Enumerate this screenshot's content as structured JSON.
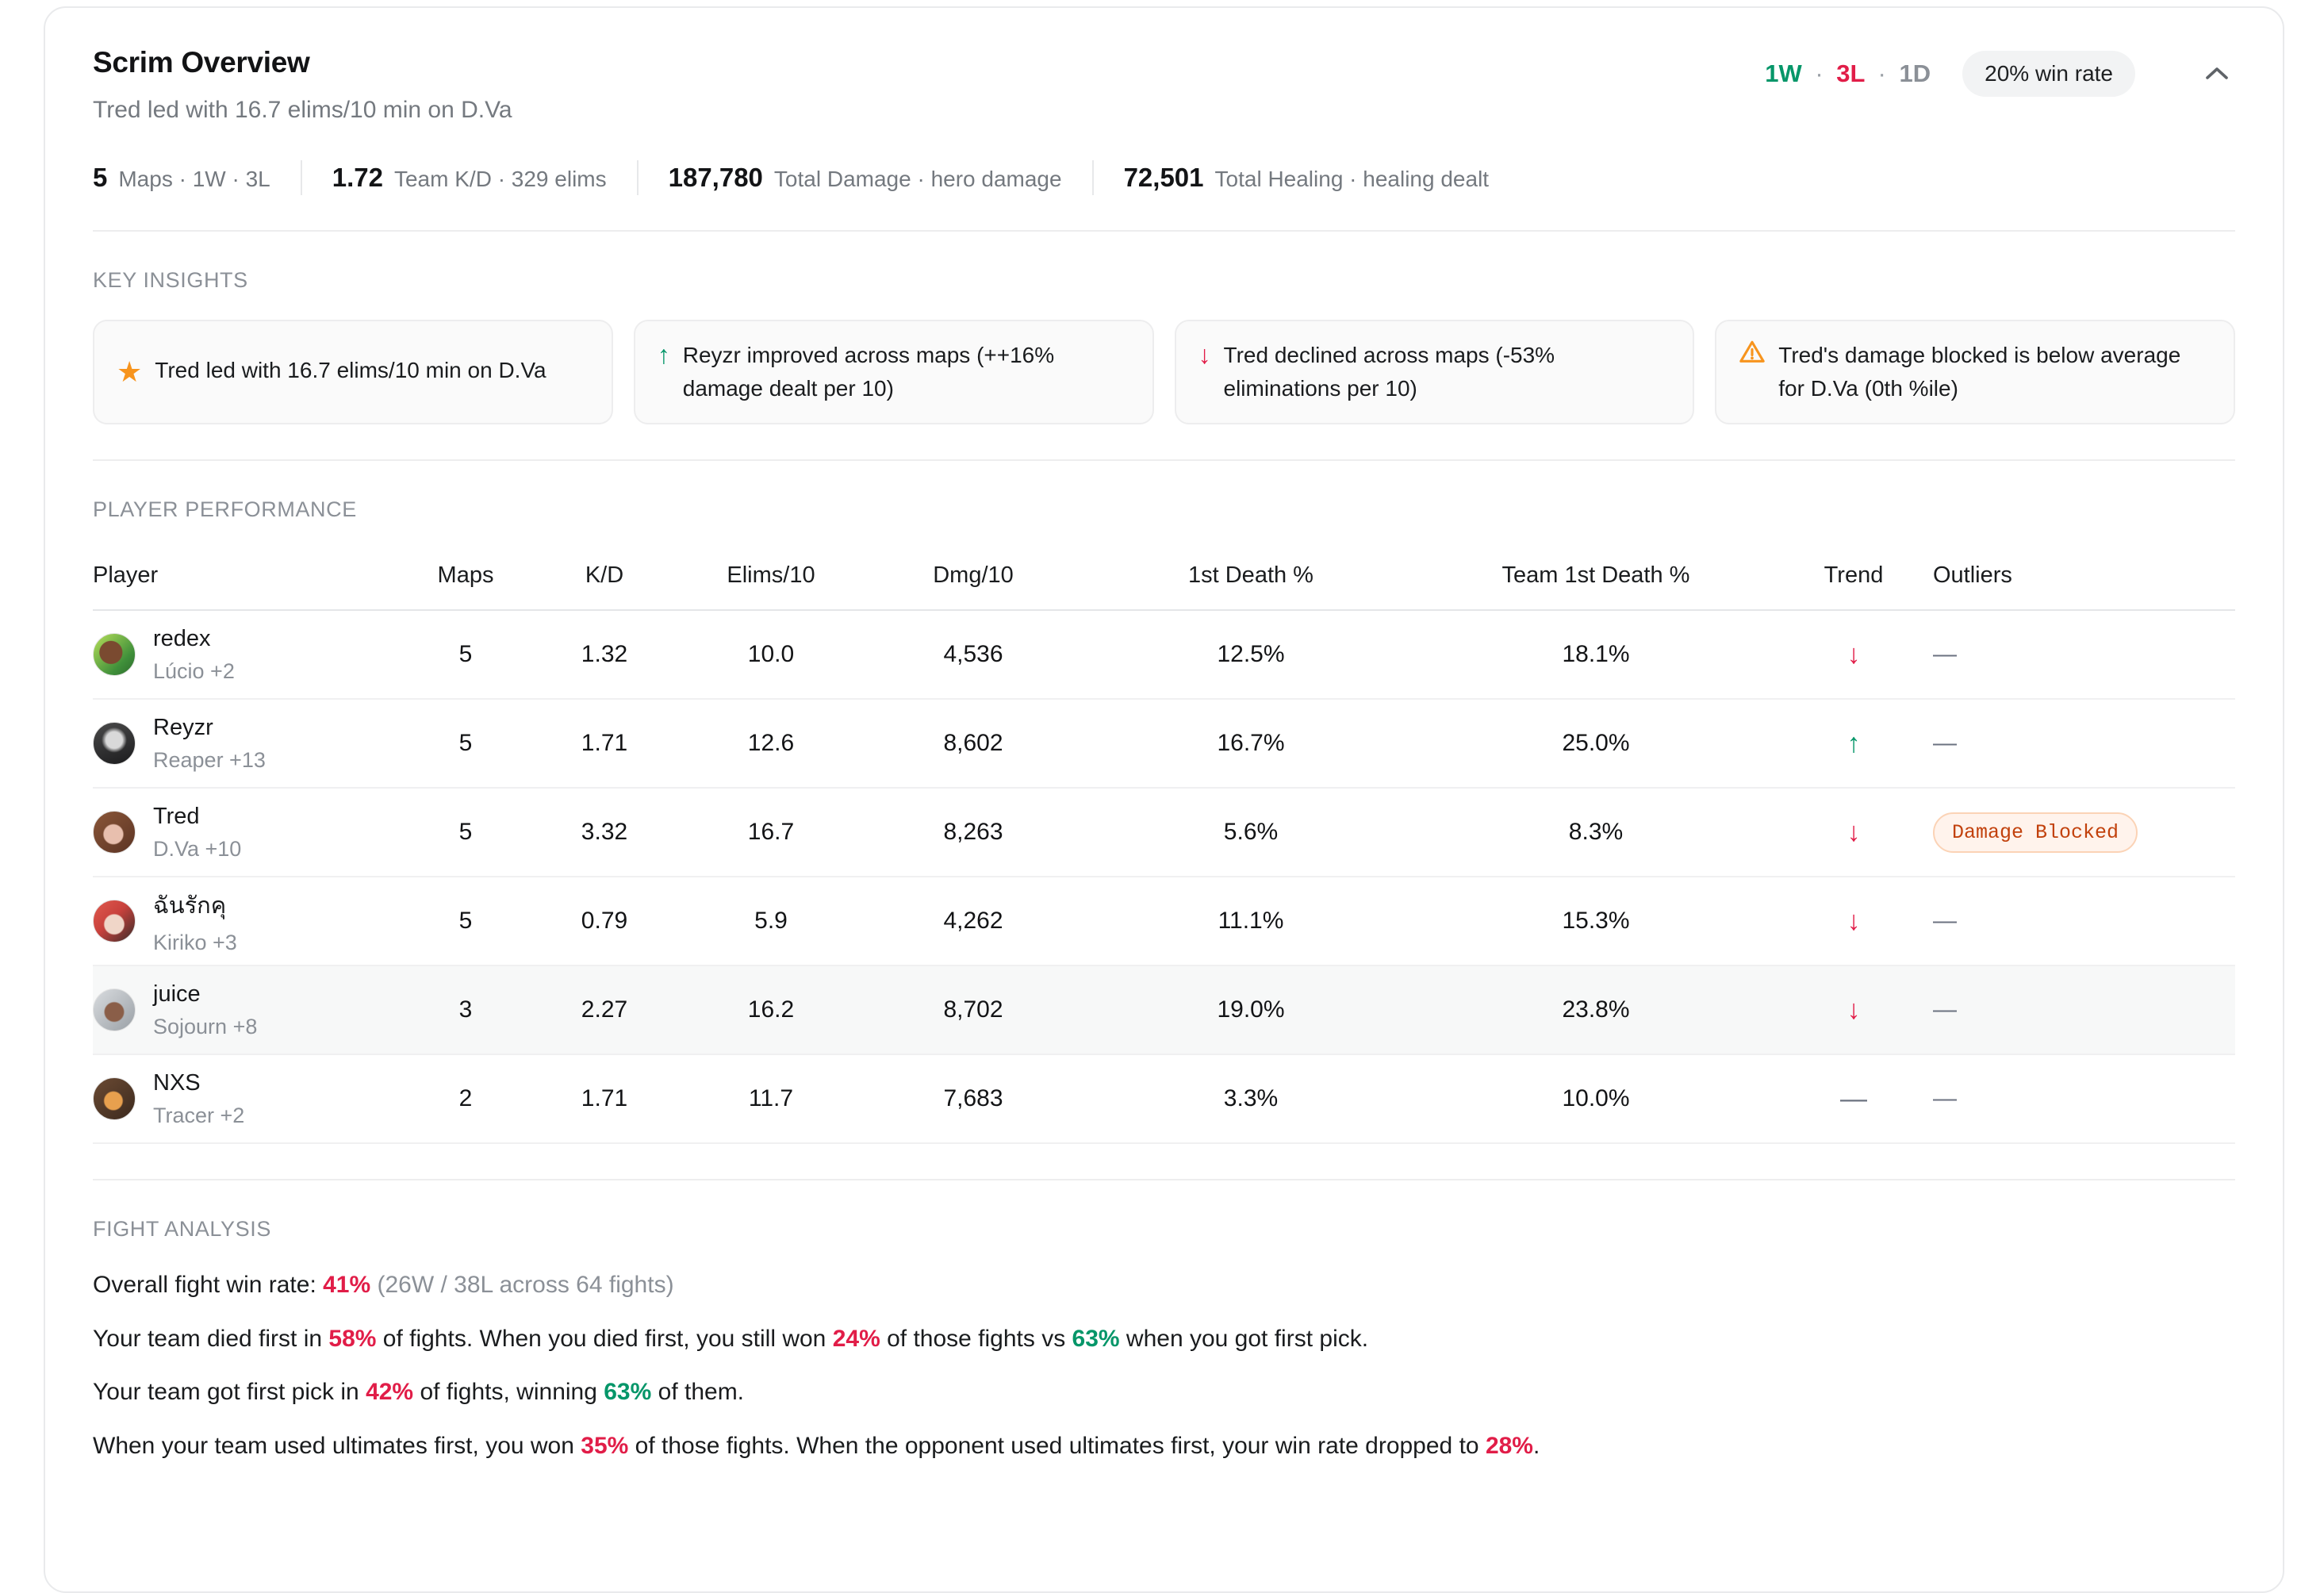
{
  "colors": {
    "green": "#059669",
    "red": "#e11d48",
    "orange": "#f7941d"
  },
  "header": {
    "title": "Scrim Overview",
    "subtitle": "Tred led with 16.7 elims/10 min on D.Va",
    "record": {
      "wins": "1W",
      "losses": "3L",
      "draws": "1D",
      "separator": "·"
    },
    "win_rate_badge": "20% win rate"
  },
  "summary_stats": [
    {
      "value": "5",
      "label": "Maps · 1W · 3L"
    },
    {
      "value": "1.72",
      "label": "Team K/D · 329 elims"
    },
    {
      "value": "187,780",
      "label": "Total Damage · hero damage"
    },
    {
      "value": "72,501",
      "label": "Total Healing · healing dealt"
    }
  ],
  "key_insights": {
    "section_label": "KEY INSIGHTS",
    "cards": [
      {
        "icon": "star-icon",
        "text": "Tred led with 16.7 elims/10 min on D.Va"
      },
      {
        "icon": "arrow-up-icon",
        "text": "Reyzr improved across maps (++16% damage dealt per 10)"
      },
      {
        "icon": "arrow-down-icon",
        "text": "Tred declined across maps (-53% eliminations per 10)"
      },
      {
        "icon": "warning-icon",
        "text": "Tred's damage blocked is below average for D.Va (0th %ile)"
      }
    ]
  },
  "player_table": {
    "section_label": "PLAYER PERFORMANCE",
    "columns": [
      "Player",
      "Maps",
      "K/D",
      "Elims/10",
      "Dmg/10",
      "1st Death %",
      "Team 1st Death %",
      "Trend",
      "Outliers"
    ],
    "rows": [
      {
        "player": "redex",
        "heroes": "Lúcio +2",
        "avatar": "lucio",
        "maps": "5",
        "kd": "1.32",
        "elims10": "10.0",
        "dmg10": "4,536",
        "first_death": "12.5%",
        "team_first_death": "18.1%",
        "trend": "down",
        "outlier": {
          "badge": false,
          "label": "—"
        },
        "highlight": false
      },
      {
        "player": "Reyzr",
        "heroes": "Reaper +13",
        "avatar": "reaper",
        "maps": "5",
        "kd": "1.71",
        "elims10": "12.6",
        "dmg10": "8,602",
        "first_death": "16.7%",
        "team_first_death": "25.0%",
        "trend": "up",
        "outlier": {
          "badge": false,
          "label": "—"
        },
        "highlight": false
      },
      {
        "player": "Tred",
        "heroes": "D.Va +10",
        "avatar": "dva",
        "maps": "5",
        "kd": "3.32",
        "elims10": "16.7",
        "dmg10": "8,263",
        "first_death": "5.6%",
        "team_first_death": "8.3%",
        "trend": "down",
        "outlier": {
          "badge": true,
          "label": "Damage Blocked"
        },
        "highlight": false
      },
      {
        "player": "ฉันรักคุ",
        "heroes": "Kiriko +3",
        "avatar": "kiriko",
        "maps": "5",
        "kd": "0.79",
        "elims10": "5.9",
        "dmg10": "4,262",
        "first_death": "11.1%",
        "team_first_death": "15.3%",
        "trend": "down",
        "outlier": {
          "badge": false,
          "label": "—"
        },
        "highlight": false
      },
      {
        "player": "juice",
        "heroes": "Sojourn +8",
        "avatar": "sojourn",
        "maps": "3",
        "kd": "2.27",
        "elims10": "16.2",
        "dmg10": "8,702",
        "first_death": "19.0%",
        "team_first_death": "23.8%",
        "trend": "down",
        "outlier": {
          "badge": false,
          "label": "—"
        },
        "highlight": true
      },
      {
        "player": "NXS",
        "heroes": "Tracer +2",
        "avatar": "tracer",
        "maps": "2",
        "kd": "1.71",
        "elims10": "11.7",
        "dmg10": "7,683",
        "first_death": "3.3%",
        "team_first_death": "10.0%",
        "trend": "none",
        "outlier": {
          "badge": false,
          "label": "—"
        },
        "highlight": false
      }
    ]
  },
  "fight_analysis": {
    "section_label": "FIGHT ANALYSIS",
    "lines": [
      {
        "segments": [
          {
            "text": "Overall fight win rate: ",
            "style": "default"
          },
          {
            "text": "41%",
            "style": "red"
          },
          {
            "text": " (26W / 38L across 64 fights)",
            "style": "muted"
          }
        ]
      },
      {
        "segments": [
          {
            "text": "Your team died first in ",
            "style": "default"
          },
          {
            "text": "58%",
            "style": "red"
          },
          {
            "text": " of fights. When you died first, you still won ",
            "style": "default"
          },
          {
            "text": "24%",
            "style": "red"
          },
          {
            "text": " of those fights vs ",
            "style": "default"
          },
          {
            "text": "63%",
            "style": "green"
          },
          {
            "text": " when you got first pick.",
            "style": "default"
          }
        ]
      },
      {
        "segments": [
          {
            "text": "Your team got first pick in ",
            "style": "default"
          },
          {
            "text": "42%",
            "style": "red"
          },
          {
            "text": " of fights, winning ",
            "style": "default"
          },
          {
            "text": "63%",
            "style": "green"
          },
          {
            "text": " of them.",
            "style": "default"
          }
        ]
      },
      {
        "segments": [
          {
            "text": "When your team used ultimates first, you won ",
            "style": "default"
          },
          {
            "text": "35%",
            "style": "red"
          },
          {
            "text": " of those fights. When the opponent used ultimates first, your win rate dropped to ",
            "style": "default"
          },
          {
            "text": "28%",
            "style": "red"
          },
          {
            "text": ".",
            "style": "default"
          }
        ]
      }
    ]
  }
}
